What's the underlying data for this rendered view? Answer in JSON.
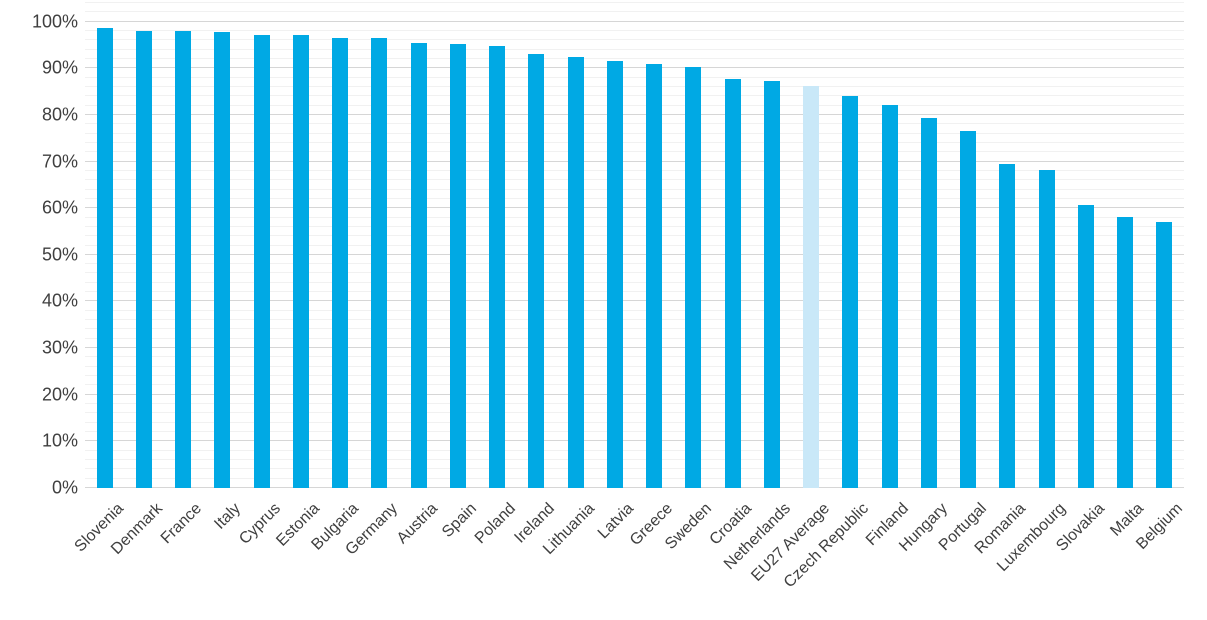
{
  "chart_data": {
    "type": "bar",
    "title": "",
    "xlabel": "",
    "ylabel": "",
    "categories": [
      "Slovenia",
      "Denmark",
      "France",
      "Italy",
      "Cyprus",
      "Estonia",
      "Bulgaria",
      "Germany",
      "Austria",
      "Spain",
      "Poland",
      "Ireland",
      "Lithuania",
      "Latvia",
      "Greece",
      "Sweden",
      "Croatia",
      "Netherlands",
      "EU27 Average",
      "Czech Republic",
      "Finland",
      "Hungary",
      "Portugal",
      "Romania",
      "Luxembourg",
      "Slovakia",
      "Malta",
      "Belgium"
    ],
    "values": [
      98.7,
      97.9,
      97.9,
      97.8,
      97.2,
      97.1,
      96.6,
      96.4,
      95.5,
      95.2,
      94.7,
      93.1,
      92.5,
      91.6,
      91.0,
      90.3,
      87.6,
      87.2,
      86.3,
      84.1,
      82.1,
      79.3,
      76.6,
      69.5,
      68.1,
      60.6,
      58.1,
      57.1
    ],
    "value_unit": "%",
    "highlight_category": "EU27 Average",
    "sort_order": "descending",
    "legend_position": "none",
    "grid": true,
    "y_axis": {
      "min": 0,
      "max_label": 100,
      "plot_max": 104,
      "major_step": 10,
      "minor_step": 2,
      "tick_labels": [
        "0%",
        "10%",
        "20%",
        "30%",
        "40%",
        "50%",
        "60%",
        "70%",
        "80%",
        "90%",
        "100%"
      ]
    },
    "x_axis": {
      "label_rotation_deg": 45
    },
    "colors": {
      "bar": "#00a9e4",
      "highlight_bar": "#c9e8f8",
      "major_gridline": "#d6d6d6",
      "minor_gridline": "#f1f1f1",
      "axis_text": "#3f3f3f",
      "background": "#ffffff"
    }
  }
}
